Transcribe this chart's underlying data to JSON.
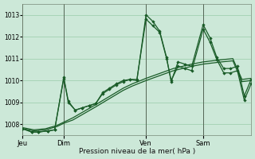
{
  "background_color": "#cce8d8",
  "grid_color": "#99ccaa",
  "line_color": "#1a5c28",
  "title": "Pression niveau de la mer( hPa )",
  "ylim": [
    1007.5,
    1013.5
  ],
  "yticks": [
    1008,
    1009,
    1010,
    1011,
    1012,
    1013
  ],
  "day_labels": [
    "Jeu",
    "Dim",
    "Ven",
    "Sam"
  ],
  "day_positions": [
    0.0,
    0.18,
    0.54,
    0.79
  ],
  "xmin": 0.0,
  "xmax": 1.0,
  "smooth1_x": [
    0.0,
    0.05,
    0.1,
    0.15,
    0.18,
    0.22,
    0.27,
    0.32,
    0.36,
    0.4,
    0.44,
    0.48,
    0.54,
    0.58,
    0.62,
    0.66,
    0.7,
    0.74,
    0.79,
    0.83,
    0.87,
    0.92,
    0.96,
    1.0
  ],
  "smooth1_y": [
    1007.8,
    1007.7,
    1007.75,
    1007.9,
    1008.05,
    1008.2,
    1008.5,
    1008.8,
    1009.05,
    1009.3,
    1009.55,
    1009.75,
    1010.0,
    1010.15,
    1010.3,
    1010.45,
    1010.55,
    1010.65,
    1010.75,
    1010.8,
    1010.85,
    1010.9,
    1009.95,
    1010.0
  ],
  "smooth2_x": [
    0.0,
    0.05,
    0.1,
    0.15,
    0.18,
    0.22,
    0.27,
    0.32,
    0.36,
    0.4,
    0.44,
    0.48,
    0.54,
    0.58,
    0.62,
    0.66,
    0.7,
    0.74,
    0.79,
    0.83,
    0.87,
    0.92,
    0.96,
    1.0
  ],
  "smooth2_y": [
    1007.85,
    1007.75,
    1007.8,
    1007.95,
    1008.1,
    1008.3,
    1008.6,
    1008.9,
    1009.15,
    1009.4,
    1009.65,
    1009.85,
    1010.1,
    1010.25,
    1010.4,
    1010.55,
    1010.65,
    1010.75,
    1010.85,
    1010.9,
    1010.95,
    1011.0,
    1010.05,
    1010.1
  ],
  "spiky1_x": [
    0.0,
    0.04,
    0.07,
    0.11,
    0.14,
    0.18,
    0.2,
    0.23,
    0.26,
    0.29,
    0.32,
    0.35,
    0.38,
    0.41,
    0.44,
    0.47,
    0.5,
    0.54,
    0.57,
    0.6,
    0.63,
    0.65,
    0.68,
    0.71,
    0.74,
    0.79,
    0.82,
    0.85,
    0.88,
    0.91,
    0.94,
    0.97,
    1.0
  ],
  "spiky1_y": [
    1007.8,
    1007.65,
    1007.65,
    1007.7,
    1007.75,
    1010.1,
    1009.0,
    1008.65,
    1008.75,
    1008.85,
    1008.95,
    1009.4,
    1009.6,
    1009.8,
    1009.95,
    1010.05,
    1010.0,
    1013.0,
    1012.7,
    1012.25,
    1011.05,
    1009.95,
    1010.85,
    1010.75,
    1010.65,
    1012.55,
    1011.95,
    1011.05,
    1010.55,
    1010.55,
    1010.65,
    1009.3,
    1010.05
  ],
  "spiky2_x": [
    0.0,
    0.04,
    0.07,
    0.11,
    0.14,
    0.18,
    0.2,
    0.23,
    0.26,
    0.29,
    0.32,
    0.35,
    0.38,
    0.41,
    0.44,
    0.47,
    0.5,
    0.54,
    0.57,
    0.6,
    0.63,
    0.65,
    0.68,
    0.71,
    0.74,
    0.79,
    0.82,
    0.85,
    0.88,
    0.91,
    0.94,
    0.97,
    1.0
  ],
  "spiky2_y": [
    1007.8,
    1007.65,
    1007.65,
    1007.7,
    1007.75,
    1010.15,
    1009.05,
    1008.65,
    1008.75,
    1008.85,
    1008.95,
    1009.45,
    1009.65,
    1009.85,
    1010.0,
    1010.05,
    1010.05,
    1012.8,
    1012.5,
    1012.2,
    1011.0,
    1010.0,
    1010.65,
    1010.55,
    1010.45,
    1012.35,
    1011.75,
    1010.95,
    1010.35,
    1010.35,
    1010.45,
    1009.1,
    1009.85
  ]
}
